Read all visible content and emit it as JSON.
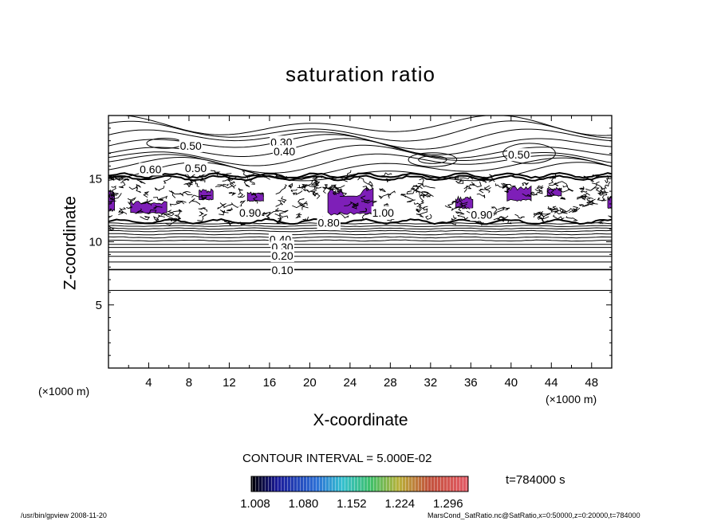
{
  "chart_data": {
    "type": "contour",
    "title": "saturation ratio",
    "xlabel": "X-coordinate",
    "ylabel": "Z-coordinate",
    "x_unit": "(×1000 m)",
    "z_unit": "(×1000 m)",
    "xlim": [
      0,
      50
    ],
    "ylim": [
      0,
      20
    ],
    "x_ticks": [
      4,
      8,
      12,
      16,
      20,
      24,
      28,
      32,
      36,
      40,
      44,
      48
    ],
    "y_ticks": [
      5,
      10,
      15
    ],
    "contour_interval_label": "CONTOUR INTERVAL = 5.000E-02",
    "time_label": "t=784000 s",
    "colorbar": {
      "min": 1.008,
      "max": 1.332,
      "tick_labels": [
        "1.008",
        "1.080",
        "1.152",
        "1.224",
        "1.296"
      ],
      "tick_values": [
        1.008,
        1.08,
        1.152,
        1.224,
        1.296
      ]
    },
    "fill_color": "#7e1fb8",
    "horizontal_contours": [
      {
        "level": 0.1,
        "z": 7.8,
        "label": "0.10"
      },
      {
        "level": 0.05,
        "z": 6.15
      },
      {
        "level": 0.15,
        "z": 8.4
      },
      {
        "level": 0.2,
        "z": 8.85,
        "label": "0.20"
      },
      {
        "level": 0.25,
        "z": 9.2
      },
      {
        "level": 0.3,
        "z": 9.55,
        "label": "0.30"
      },
      {
        "level": 0.35,
        "z": 9.8
      },
      {
        "level": 0.4,
        "z": 10.1,
        "label": "0.40"
      },
      {
        "level": 0.45,
        "z": 10.35
      },
      {
        "level": 0.5,
        "z": 10.6
      },
      {
        "level": 0.55,
        "z": 10.85
      },
      {
        "level": 0.6,
        "z": 11.05
      },
      {
        "level": 0.7,
        "z": 11.25
      },
      {
        "level": 0.8,
        "z": 11.45,
        "label": "0.80"
      }
    ],
    "contour_labels": [
      {
        "text": "0.30",
        "x": 16.1,
        "z": 17.9
      },
      {
        "text": "0.40",
        "x": 16.4,
        "z": 17.15
      },
      {
        "text": "0.50",
        "x": 7.1,
        "z": 17.6
      },
      {
        "text": "0.50",
        "x": 39.7,
        "z": 16.9
      },
      {
        "text": "0.60",
        "x": 3.1,
        "z": 15.75
      },
      {
        "text": "0.50",
        "x": 7.6,
        "z": 15.85
      },
      {
        "text": "1.00",
        "x": 26.2,
        "z": 12.3
      },
      {
        "text": "0.90",
        "x": 13.0,
        "z": 12.3
      },
      {
        "text": "0.90",
        "x": 36.0,
        "z": 12.15
      },
      {
        "text": "0.80",
        "x": 20.8,
        "z": 11.5
      },
      {
        "text": "0.40",
        "x": 16.0,
        "z": 10.2
      },
      {
        "text": "0.30",
        "x": 16.2,
        "z": 9.6
      },
      {
        "text": "0.20",
        "x": 16.2,
        "z": 8.9
      },
      {
        "text": "0.10",
        "x": 16.2,
        "z": 7.75
      }
    ],
    "supersaturated_regions": [
      {
        "x": [
          2.2,
          5.8
        ],
        "z": [
          12.2,
          13.3
        ]
      },
      {
        "x": [
          9.0,
          10.4
        ],
        "z": [
          13.3,
          14.2
        ]
      },
      {
        "x": [
          13.8,
          15.4
        ],
        "z": [
          13.2,
          14.0
        ]
      },
      {
        "x": [
          21.8,
          26.3
        ],
        "z": [
          12.1,
          14.3
        ]
      },
      {
        "x": [
          34.5,
          36.2
        ],
        "z": [
          12.6,
          13.6
        ]
      },
      {
        "x": [
          39.6,
          42.0
        ],
        "z": [
          13.2,
          14.5
        ]
      },
      {
        "x": [
          43.6,
          45.0
        ],
        "z": [
          13.6,
          14.3
        ]
      },
      {
        "x": [
          0.0,
          0.6
        ],
        "z": [
          12.4,
          14.1
        ]
      },
      {
        "x": [
          49.6,
          50.0
        ],
        "z": [
          12.6,
          13.6
        ]
      }
    ]
  },
  "footer": {
    "program": "/usr/bin/gpview  2008-11-20",
    "file_info": "MarsCond_SatRatio.nc@SatRatio,x=0:50000,z=0:20000,t=784000"
  }
}
